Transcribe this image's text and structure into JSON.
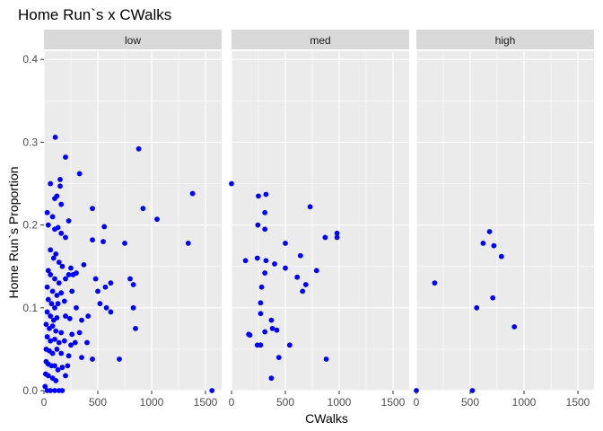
{
  "chart_data": {
    "type": "scatter",
    "title": "Home Run`s x CWalks",
    "xlabel": "CWalks",
    "ylabel": "Home Run`s Proportion",
    "xlim": [
      0,
      1650
    ],
    "ylim": [
      0,
      0.41
    ],
    "x_ticks": [
      0,
      500,
      1000,
      1500
    ],
    "y_ticks": [
      0.0,
      0.1,
      0.2,
      0.3,
      0.4
    ],
    "y_tick_labels": [
      "0.0",
      "0.1",
      "0.2",
      "0.3",
      "0.4"
    ],
    "point_color": "#0000ff",
    "panel_background": "#ebebeb",
    "strip_background": "#d9d9d9",
    "grid": true,
    "facets": [
      {
        "label": "low",
        "points": [
          [
            105,
            0.306
          ],
          [
            880,
            0.292
          ],
          [
            200,
            0.282
          ],
          [
            330,
            0.262
          ],
          [
            150,
            0.255
          ],
          [
            1380,
            0.238
          ],
          [
            120,
            0.235
          ],
          [
            100,
            0.232
          ],
          [
            150,
            0.247
          ],
          [
            60,
            0.25
          ],
          [
            920,
            0.22
          ],
          [
            450,
            0.22
          ],
          [
            30,
            0.215
          ],
          [
            160,
            0.225
          ],
          [
            80,
            0.21
          ],
          [
            230,
            0.205
          ],
          [
            1050,
            0.207
          ],
          [
            40,
            0.2
          ],
          [
            130,
            0.197
          ],
          [
            560,
            0.198
          ],
          [
            100,
            0.195
          ],
          [
            160,
            0.19
          ],
          [
            200,
            0.185
          ],
          [
            450,
            0.182
          ],
          [
            550,
            0.18
          ],
          [
            750,
            0.178
          ],
          [
            1340,
            0.178
          ],
          [
            60,
            0.17
          ],
          [
            110,
            0.165
          ],
          [
            90,
            0.16
          ],
          [
            140,
            0.155
          ],
          [
            170,
            0.15
          ],
          [
            40,
            0.145
          ],
          [
            250,
            0.148
          ],
          [
            270,
            0.14
          ],
          [
            300,
            0.142
          ],
          [
            370,
            0.152
          ],
          [
            60,
            0.14
          ],
          [
            100,
            0.135
          ],
          [
            140,
            0.13
          ],
          [
            200,
            0.135
          ],
          [
            230,
            0.14
          ],
          [
            480,
            0.135
          ],
          [
            620,
            0.13
          ],
          [
            800,
            0.135
          ],
          [
            830,
            0.128
          ],
          [
            500,
            0.12
          ],
          [
            570,
            0.125
          ],
          [
            30,
            0.125
          ],
          [
            80,
            0.12
          ],
          [
            120,
            0.115
          ],
          [
            160,
            0.118
          ],
          [
            260,
            0.12
          ],
          [
            40,
            0.11
          ],
          [
            70,
            0.105
          ],
          [
            100,
            0.1
          ],
          [
            130,
            0.105
          ],
          [
            190,
            0.108
          ],
          [
            300,
            0.1
          ],
          [
            520,
            0.105
          ],
          [
            580,
            0.1
          ],
          [
            830,
            0.1
          ],
          [
            620,
            0.095
          ],
          [
            410,
            0.09
          ],
          [
            30,
            0.095
          ],
          [
            60,
            0.09
          ],
          [
            90,
            0.085
          ],
          [
            120,
            0.088
          ],
          [
            200,
            0.09
          ],
          [
            240,
            0.087
          ],
          [
            350,
            0.085
          ],
          [
            850,
            0.075
          ],
          [
            20,
            0.08
          ],
          [
            50,
            0.075
          ],
          [
            80,
            0.078
          ],
          [
            110,
            0.072
          ],
          [
            160,
            0.07
          ],
          [
            260,
            0.068
          ],
          [
            330,
            0.07
          ],
          [
            30,
            0.065
          ],
          [
            60,
            0.06
          ],
          [
            100,
            0.062
          ],
          [
            140,
            0.058
          ],
          [
            190,
            0.06
          ],
          [
            250,
            0.055
          ],
          [
            290,
            0.058
          ],
          [
            400,
            0.058
          ],
          [
            20,
            0.05
          ],
          [
            50,
            0.048
          ],
          [
            80,
            0.045
          ],
          [
            120,
            0.05
          ],
          [
            160,
            0.045
          ],
          [
            230,
            0.042
          ],
          [
            350,
            0.04
          ],
          [
            450,
            0.038
          ],
          [
            700,
            0.038
          ],
          [
            20,
            0.035
          ],
          [
            40,
            0.032
          ],
          [
            70,
            0.03
          ],
          [
            100,
            0.03
          ],
          [
            130,
            0.025
          ],
          [
            170,
            0.028
          ],
          [
            220,
            0.03
          ],
          [
            15,
            0.02
          ],
          [
            40,
            0.018
          ],
          [
            80,
            0.015
          ],
          [
            110,
            0.012
          ],
          [
            200,
            0.018
          ],
          [
            10,
            0.005
          ],
          [
            30,
            0
          ],
          [
            60,
            0
          ],
          [
            100,
            0
          ],
          [
            140,
            0
          ],
          [
            170,
            0
          ],
          [
            1560,
            0
          ]
        ]
      },
      {
        "label": "med",
        "points": [
          [
            0,
            0.25
          ],
          [
            320,
            0.237
          ],
          [
            250,
            0.235
          ],
          [
            730,
            0.222
          ],
          [
            310,
            0.215
          ],
          [
            245,
            0.2
          ],
          [
            980,
            0.19
          ],
          [
            310,
            0.195
          ],
          [
            980,
            0.185
          ],
          [
            870,
            0.185
          ],
          [
            500,
            0.178
          ],
          [
            240,
            0.16
          ],
          [
            130,
            0.157
          ],
          [
            320,
            0.157
          ],
          [
            640,
            0.163
          ],
          [
            400,
            0.153
          ],
          [
            310,
            0.142
          ],
          [
            500,
            0.148
          ],
          [
            790,
            0.145
          ],
          [
            610,
            0.137
          ],
          [
            690,
            0.128
          ],
          [
            280,
            0.125
          ],
          [
            660,
            0.12
          ],
          [
            270,
            0.106
          ],
          [
            270,
            0.093
          ],
          [
            370,
            0.085
          ],
          [
            380,
            0.075
          ],
          [
            420,
            0.073
          ],
          [
            310,
            0.071
          ],
          [
            170,
            0.067
          ],
          [
            160,
            0.068
          ],
          [
            270,
            0.055
          ],
          [
            240,
            0.055
          ],
          [
            540,
            0.055
          ],
          [
            440,
            0.04
          ],
          [
            880,
            0.038
          ],
          [
            370,
            0.015
          ]
        ]
      },
      {
        "label": "high",
        "points": [
          [
            680,
            0.192
          ],
          [
            620,
            0.178
          ],
          [
            720,
            0.175
          ],
          [
            790,
            0.162
          ],
          [
            170,
            0.13
          ],
          [
            710,
            0.112
          ],
          [
            560,
            0.1
          ],
          [
            910,
            0.077
          ],
          [
            0,
            0
          ],
          [
            520,
            0
          ]
        ]
      }
    ]
  }
}
